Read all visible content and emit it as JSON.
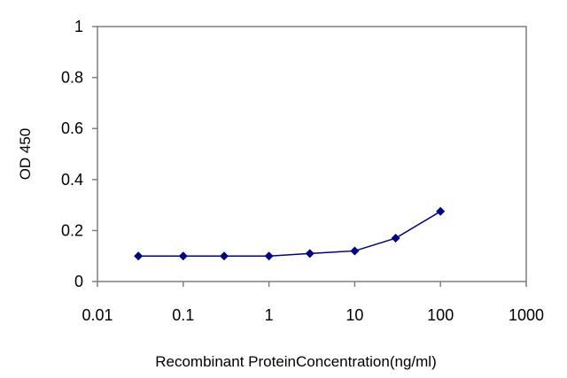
{
  "chart_data": {
    "type": "line",
    "title": "",
    "xlabel": "Recombinant ProteinConcentration(ng/ml)",
    "ylabel": "OD 450",
    "x_scale": "log",
    "xlim": [
      0.01,
      1000
    ],
    "ylim": [
      0,
      1
    ],
    "x_ticks": [
      "0.01",
      "0.1",
      "1",
      "10",
      "100",
      "1000"
    ],
    "y_ticks": [
      "0",
      "0.2",
      "0.4",
      "0.6",
      "0.8",
      "1"
    ],
    "grid": false,
    "legend": "none",
    "series": [
      {
        "color": "#00008b",
        "marker": "diamond",
        "x": [
          0.03,
          0.1,
          0.3,
          1,
          3,
          10,
          30,
          100
        ],
        "y": [
          0.1,
          0.1,
          0.1,
          0.1,
          0.11,
          0.12,
          0.17,
          0.275
        ]
      }
    ]
  }
}
